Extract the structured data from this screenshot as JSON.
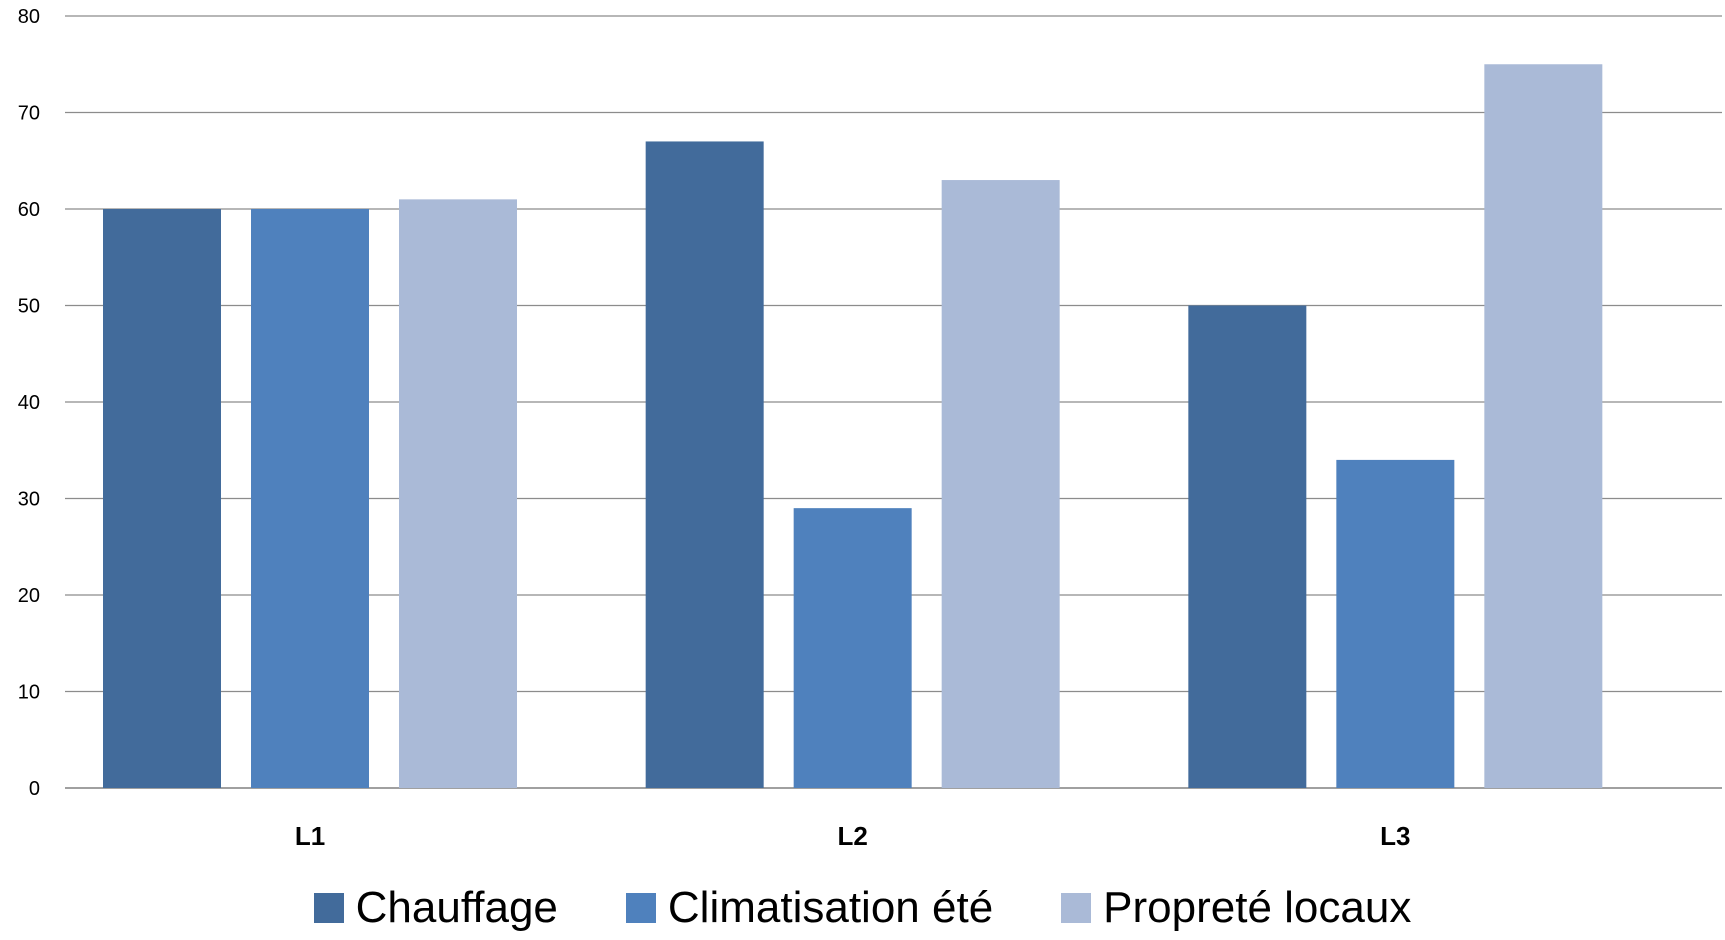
{
  "chart_data": {
    "type": "bar",
    "title": "",
    "xlabel": "",
    "ylabel": "",
    "categories": [
      "L1",
      "L2",
      "L3"
    ],
    "series": [
      {
        "name": "Chauffage",
        "values": [
          60,
          67,
          50
        ],
        "color": "#426b9b"
      },
      {
        "name": "Climatisation été",
        "values": [
          60,
          29,
          34
        ],
        "color": "#4f81bd"
      },
      {
        "name": "Propreté locaux",
        "values": [
          61,
          63,
          75
        ],
        "color": "#aabad7"
      }
    ],
    "ylim": [
      0,
      80
    ],
    "yticks": [
      0,
      10,
      20,
      30,
      40,
      50,
      60,
      70,
      80
    ],
    "grid": true,
    "legend_position": "bottom"
  }
}
